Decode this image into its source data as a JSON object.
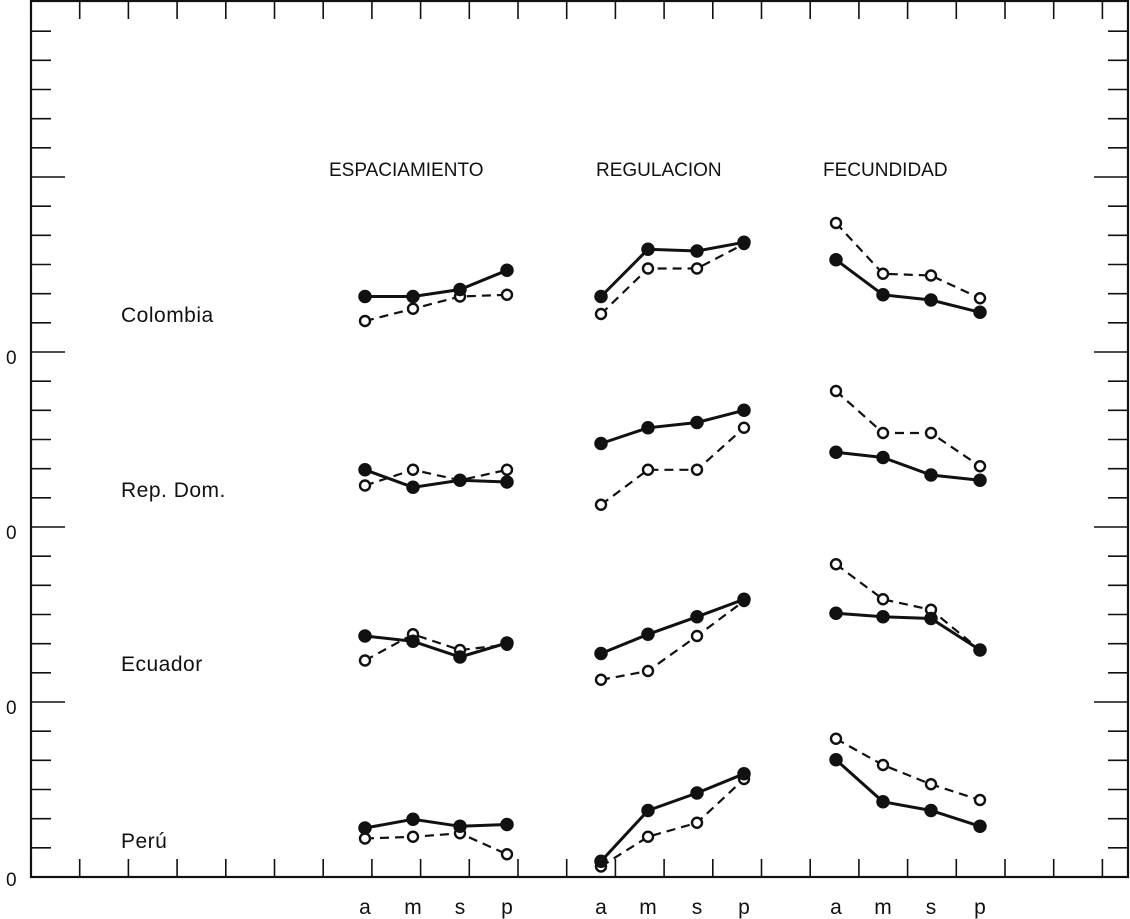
{
  "chart_data": {
    "type": "line",
    "title": "",
    "panels": [
      "ESPACIAMIENTO",
      "REGULACION",
      "FECUNDIDAD"
    ],
    "rows": [
      "Colombia",
      "Rep. Dom.",
      "Ecuador",
      "Perú"
    ],
    "categories": [
      "a",
      "m",
      "s",
      "p"
    ],
    "y_tick_label": "0",
    "markers": {
      "series_1": "filled circle, solid line",
      "series_2": "open circle, dashed line"
    },
    "grid": false,
    "legend": "none",
    "data": [
      {
        "country": "Colombia",
        "panels": [
          {
            "panel": "ESPACIAMIENTO",
            "series": [
              {
                "values": [
                  0.34,
                  0.34,
                  0.38,
                  0.49
                ]
              },
              {
                "values": [
                  0.2,
                  0.27,
                  0.34,
                  0.35
                ]
              }
            ]
          },
          {
            "panel": "REGULACION",
            "series": [
              {
                "values": [
                  0.34,
                  0.61,
                  0.6,
                  0.65
                ]
              },
              {
                "values": [
                  0.24,
                  0.5,
                  0.5,
                  0.64
                ]
              }
            ]
          },
          {
            "panel": "FECUNDIDAD",
            "series": [
              {
                "values": [
                  0.55,
                  0.35,
                  0.32,
                  0.25
                ]
              },
              {
                "values": [
                  0.76,
                  0.47,
                  0.46,
                  0.33
                ]
              }
            ]
          }
        ]
      },
      {
        "country": "Rep. Dom.",
        "panels": [
          {
            "panel": "ESPACIAMIENTO",
            "series": [
              {
                "values": [
                  0.35,
                  0.25,
                  0.29,
                  0.28
                ]
              },
              {
                "values": [
                  0.26,
                  0.35,
                  0.29,
                  0.35
                ]
              }
            ]
          },
          {
            "panel": "REGULACION",
            "series": [
              {
                "values": [
                  0.5,
                  0.59,
                  0.62,
                  0.69
                ]
              },
              {
                "values": [
                  0.15,
                  0.35,
                  0.35,
                  0.59
                ]
              }
            ]
          },
          {
            "panel": "FECUNDIDAD",
            "series": [
              {
                "values": [
                  0.45,
                  0.42,
                  0.32,
                  0.29
                ]
              },
              {
                "values": [
                  0.8,
                  0.56,
                  0.56,
                  0.37
                ]
              }
            ]
          }
        ]
      },
      {
        "country": "Ecuador",
        "panels": [
          {
            "panel": "ESPACIAMIENTO",
            "series": [
              {
                "values": [
                  0.4,
                  0.37,
                  0.28,
                  0.36
                ]
              },
              {
                "values": [
                  0.26,
                  0.41,
                  0.32,
                  0.35
                ]
              }
            ]
          },
          {
            "panel": "REGULACION",
            "series": [
              {
                "values": [
                  0.3,
                  0.41,
                  0.51,
                  0.61
                ]
              },
              {
                "values": [
                  0.15,
                  0.2,
                  0.4,
                  0.6
                ]
              }
            ]
          },
          {
            "panel": "FECUNDIDAD",
            "series": [
              {
                "values": [
                  0.53,
                  0.51,
                  0.5,
                  0.32
                ]
              },
              {
                "values": [
                  0.81,
                  0.61,
                  0.55,
                  0.32
                ]
              }
            ]
          }
        ]
      },
      {
        "country": "Perú",
        "panels": [
          {
            "panel": "ESPACIAMIENTO",
            "series": [
              {
                "values": [
                  0.28,
                  0.33,
                  0.29,
                  0.3
                ]
              },
              {
                "values": [
                  0.22,
                  0.23,
                  0.25,
                  0.13
                ]
              }
            ]
          },
          {
            "panel": "REGULACION",
            "series": [
              {
                "values": [
                  0.09,
                  0.38,
                  0.48,
                  0.59
                ]
              },
              {
                "values": [
                  0.06,
                  0.23,
                  0.31,
                  0.56
                ]
              }
            ]
          },
          {
            "panel": "FECUNDIDAD",
            "series": [
              {
                "values": [
                  0.67,
                  0.43,
                  0.38,
                  0.29
                ]
              },
              {
                "values": [
                  0.79,
                  0.64,
                  0.53,
                  0.44
                ]
              }
            ]
          }
        ]
      }
    ]
  }
}
